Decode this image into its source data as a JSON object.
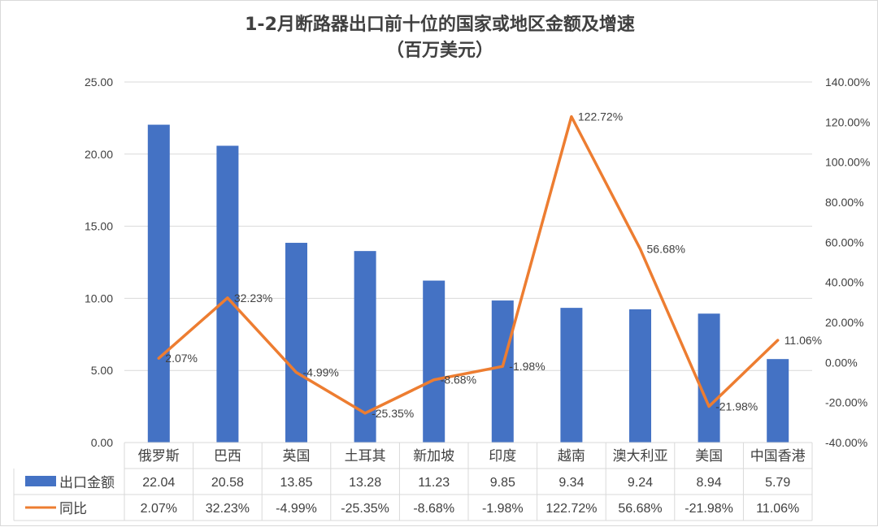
{
  "chart_data": {
    "type": "bar+line",
    "title": "1-2月断路器出口前十位的国家或地区金额及增速",
    "subtitle": "（百万美元）",
    "categories": [
      "俄罗斯",
      "巴西",
      "英国",
      "土耳其",
      "新加坡",
      "印度",
      "越南",
      "澳大利亚",
      "美国",
      "中国香港"
    ],
    "series": [
      {
        "name": "出口金额",
        "type": "bar",
        "axis": "left",
        "color": "#4472C4",
        "values": [
          22.04,
          20.58,
          13.85,
          13.28,
          11.23,
          9.85,
          9.34,
          9.24,
          8.94,
          5.79
        ],
        "labels": [
          "22.04",
          "20.58",
          "13.85",
          "13.28",
          "11.23",
          "9.85",
          "9.34",
          "9.24",
          "8.94",
          "5.79"
        ]
      },
      {
        "name": "同比",
        "type": "line",
        "axis": "right",
        "color": "#ED7D31",
        "values": [
          2.07,
          32.23,
          -4.99,
          -25.35,
          -8.68,
          -1.98,
          122.72,
          56.68,
          -21.98,
          11.06
        ],
        "labels": [
          "2.07%",
          "32.23%",
          "-4.99%",
          "-25.35%",
          "-8.68%",
          "-1.98%",
          "122.72%",
          "56.68%",
          "-21.98%",
          "11.06%"
        ]
      }
    ],
    "y_left": {
      "ylim": [
        0,
        25
      ],
      "ticks": [
        0,
        5,
        10,
        15,
        20,
        25
      ],
      "tick_labels": [
        "0.00",
        "5.00",
        "10.00",
        "15.00",
        "20.00",
        "25.00"
      ]
    },
    "y_right": {
      "ylim": [
        -40,
        140
      ],
      "ticks": [
        -40,
        -20,
        0,
        20,
        40,
        60,
        80,
        100,
        120,
        140
      ],
      "tick_labels": [
        "-40.00%",
        "-20.00%",
        "0.00%",
        "20.00%",
        "40.00%",
        "60.00%",
        "80.00%",
        "100.00%",
        "120.00%",
        "140.00%"
      ]
    },
    "grid": true,
    "legend": "data-table"
  }
}
